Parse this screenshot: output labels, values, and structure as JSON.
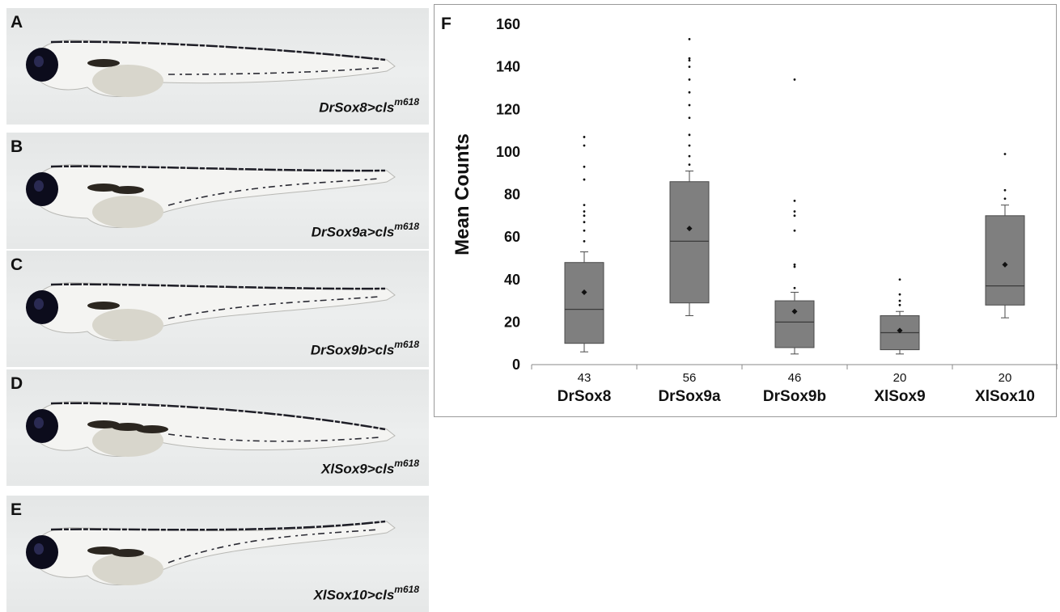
{
  "panels": [
    {
      "letter": "A",
      "genotype": "DrSox8>cls",
      "allele": "m618"
    },
    {
      "letter": "B",
      "genotype": "DrSox9a>cls",
      "allele": "m618"
    },
    {
      "letter": "C",
      "genotype": "DrSox9b>cls",
      "allele": "m618"
    },
    {
      "letter": "D",
      "genotype": "XlSox9>cls",
      "allele": "m618"
    },
    {
      "letter": "E",
      "genotype": "XlSox10>cls",
      "allele": "m618"
    }
  ],
  "chart_panel_letter": "F",
  "chart_data": {
    "type": "box",
    "title": "",
    "ylabel": "Mean Counts",
    "xlabel": "",
    "ylim": [
      0,
      160
    ],
    "yticks": [
      0,
      20,
      40,
      60,
      80,
      100,
      120,
      140,
      160
    ],
    "categories": [
      "DrSox8",
      "DrSox9a",
      "DrSox9b",
      "XlSox9",
      "XlSox10"
    ],
    "n": [
      "43",
      "56",
      "46",
      "20",
      "20"
    ],
    "boxes": [
      {
        "whisker_low": 6,
        "q1": 10,
        "median": 26,
        "q3": 48,
        "whisker_high": 53,
        "mean": 34,
        "outliers": [
          58,
          63,
          67,
          70,
          72,
          75,
          87,
          93,
          103,
          107
        ]
      },
      {
        "whisker_low": 23,
        "q1": 29,
        "median": 58,
        "q3": 86,
        "whisker_high": 91,
        "mean": 64,
        "outliers": [
          94,
          98,
          103,
          108,
          116,
          122,
          128,
          134,
          140,
          143,
          144,
          153
        ]
      },
      {
        "whisker_low": 5,
        "q1": 8,
        "median": 20,
        "q3": 30,
        "whisker_high": 34,
        "mean": 25,
        "outliers": [
          36,
          46,
          47,
          63,
          70,
          72,
          77,
          134
        ]
      },
      {
        "whisker_low": 5,
        "q1": 7,
        "median": 15,
        "q3": 23,
        "whisker_high": 25,
        "mean": 16,
        "outliers": [
          28,
          30,
          33,
          40
        ]
      },
      {
        "whisker_low": 22,
        "q1": 28,
        "median": 37,
        "q3": 70,
        "whisker_high": 75,
        "mean": 47,
        "outliers": [
          78,
          82,
          99
        ]
      }
    ],
    "colors": {
      "box_fill": "#7f7f7f",
      "box_stroke": "#4a4a4a",
      "marker": "#111111"
    }
  }
}
